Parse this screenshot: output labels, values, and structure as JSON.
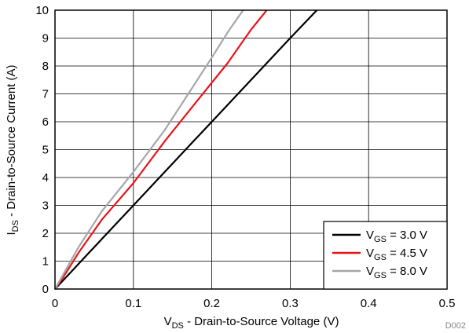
{
  "chart_data": {
    "type": "line",
    "xlabel": {
      "main": "V",
      "sub": "DS",
      "rest": " - Drain-to-Source Voltage (V)"
    },
    "ylabel": {
      "main": "I",
      "sub": "DS",
      "rest": " - Drain-to-Source Current (A)"
    },
    "xlim": [
      0,
      0.5
    ],
    "ylim": [
      0,
      10
    ],
    "xticks": [
      0,
      0.1,
      0.2,
      0.3,
      0.4,
      0.5
    ],
    "xtick_labels": [
      "0",
      "0.1",
      "0.2",
      "0.3",
      "0.4",
      "0.5"
    ],
    "yticks": [
      0,
      1,
      2,
      3,
      4,
      5,
      6,
      7,
      8,
      9,
      10
    ],
    "ytick_labels": [
      "0",
      "1",
      "2",
      "3",
      "4",
      "5",
      "6",
      "7",
      "8",
      "9",
      "10"
    ],
    "grid": true,
    "legend_position": "bottom-right",
    "figure_id": "D002",
    "series": [
      {
        "name": "V_GS = 3.0 V",
        "label_main": "V",
        "label_sub": "GS",
        "label_rest": " = 3.0 V",
        "color": "#000000",
        "x": [
          0,
          0.02,
          0.04,
          0.07,
          0.1,
          0.14,
          0.18,
          0.22,
          0.26,
          0.3,
          0.334
        ],
        "y": [
          0,
          0.6,
          1.2,
          2.1,
          3.0,
          4.2,
          5.4,
          6.6,
          7.8,
          9.0,
          10.0
        ]
      },
      {
        "name": "V_GS = 4.5 V",
        "label_main": "V",
        "label_sub": "GS",
        "label_rest": " = 4.5 V",
        "color": "#e8141b",
        "x": [
          0,
          0.01,
          0.03,
          0.06,
          0.1,
          0.14,
          0.18,
          0.22,
          0.25,
          0.27
        ],
        "y": [
          0,
          0.4,
          1.3,
          2.5,
          3.8,
          5.3,
          6.7,
          8.1,
          9.3,
          10.0
        ]
      },
      {
        "name": "V_GS = 8.0 V",
        "label_main": "V",
        "label_sub": "GS",
        "label_rest": " = 8.0 V",
        "color": "#a6a6a6",
        "x": [
          0,
          0.01,
          0.03,
          0.06,
          0.1,
          0.14,
          0.17,
          0.2,
          0.22,
          0.24
        ],
        "y": [
          0,
          0.5,
          1.5,
          2.8,
          4.2,
          5.7,
          7.0,
          8.3,
          9.2,
          10.0
        ]
      }
    ]
  }
}
